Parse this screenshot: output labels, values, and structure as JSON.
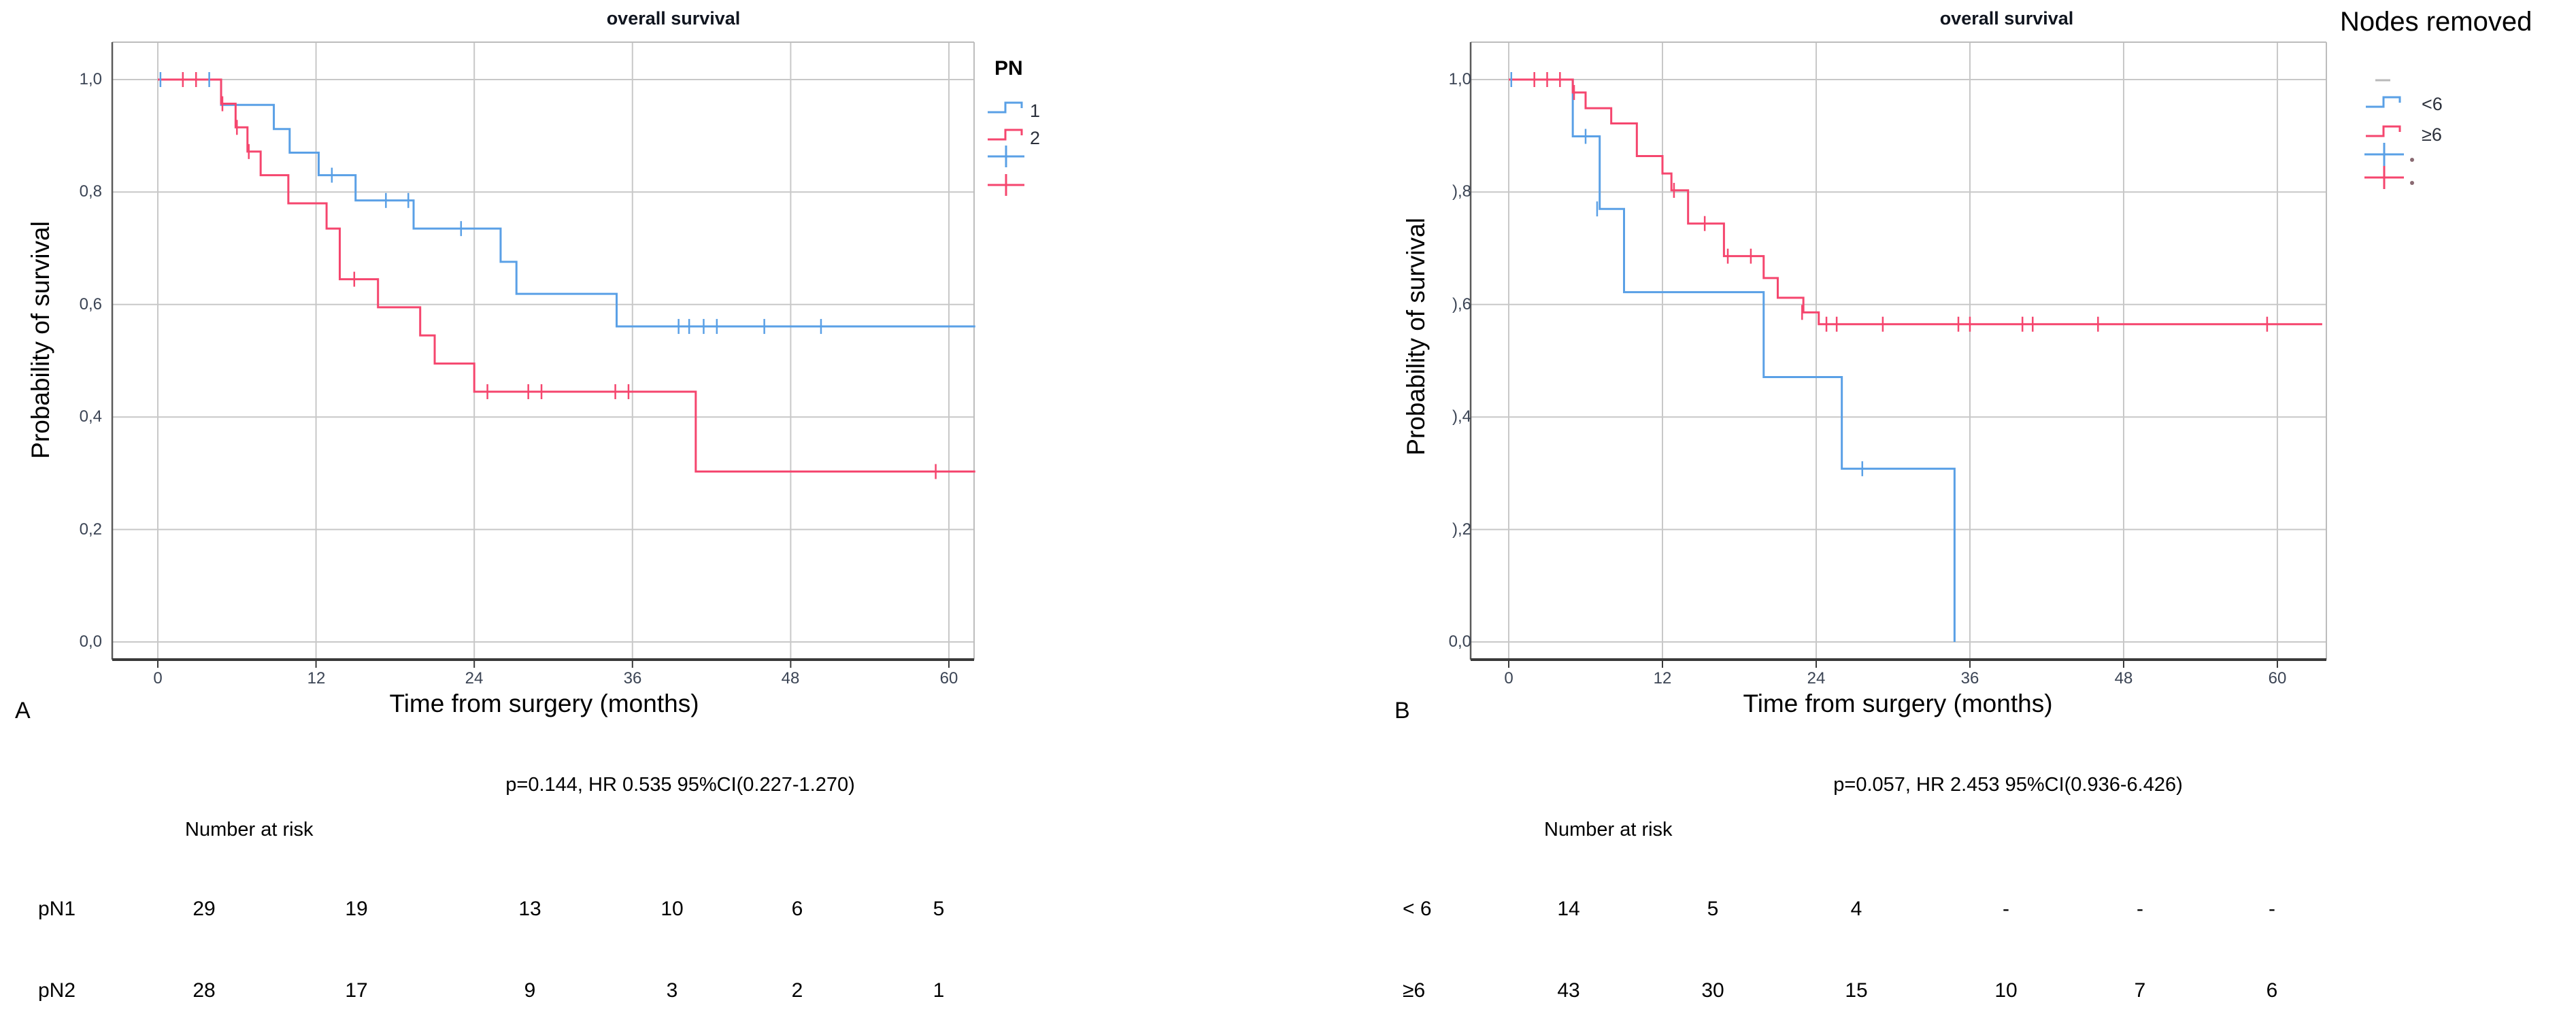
{
  "colors": {
    "blue": "#5AA0E6",
    "red": "#F5466E",
    "grid": "#C8C8C8",
    "frame_light": "#BDBDBD",
    "axis_left": "#5A5A5A",
    "axis_bottom": "#3A3A3A",
    "tick_text": "#3B4454",
    "panel_title": "#10151F",
    "legend_dash_gray": "#B9B9B9",
    "legend_dot": "#8A6A72"
  },
  "chart_data": [
    {
      "id": "A",
      "type": "km-step-line",
      "panel_label": "A",
      "title": "overall survival",
      "xlabel": "Time from surgery (months)",
      "ylabel": "Probability of survival",
      "x_axis": {
        "tick_labels": [
          "0",
          "12",
          "24",
          "36",
          "48",
          "60"
        ],
        "tick_values": [
          0,
          12,
          24,
          36,
          48,
          60
        ],
        "range": [
          -3.5,
          62
        ]
      },
      "y_axis": {
        "tick_labels": [
          "1,0",
          "0,8",
          "0,6",
          "0,4",
          "0,2",
          "0,0"
        ],
        "tick_values": [
          1.0,
          0.8,
          0.6,
          0.4,
          0.2,
          0.0
        ],
        "range": [
          0,
          1.05
        ],
        "grid": true
      },
      "legend": {
        "title": "PN",
        "items": [
          {
            "type": "step",
            "color": "blue",
            "label": "1"
          },
          {
            "type": "step",
            "color": "red",
            "label": "2"
          },
          {
            "type": "plus",
            "color": "blue",
            "label": ""
          },
          {
            "type": "plus",
            "color": "red",
            "label": ""
          }
        ]
      },
      "stats": "p=0.144, HR 0.535 95%CI(0.227-1.270)",
      "risk_table": {
        "header": "Number at risk",
        "rows": [
          {
            "label": "pN1",
            "values": [
              "29",
              "19",
              "13",
              "10",
              "6",
              "5"
            ]
          },
          {
            "label": "pN2",
            "values": [
              "28",
              "17",
              "9",
              "3",
              "2",
              "1"
            ]
          }
        ]
      },
      "series": [
        {
          "name": "1",
          "color": "blue",
          "end": 62,
          "steps": [
            [
              0,
              1.0
            ],
            [
              4.8,
              0.955
            ],
            [
              8.8,
              0.912
            ],
            [
              10.0,
              0.87
            ],
            [
              12.2,
              0.83
            ],
            [
              15.0,
              0.785
            ],
            [
              19.4,
              0.735
            ],
            [
              26.0,
              0.676
            ],
            [
              27.2,
              0.619
            ],
            [
              34.8,
              0.561
            ]
          ],
          "censors": [
            [
              0.2,
              1.0
            ],
            [
              3.9,
              1.0
            ],
            [
              13.2,
              0.83
            ],
            [
              17.3,
              0.785
            ],
            [
              19.0,
              0.785
            ],
            [
              23.0,
              0.735
            ],
            [
              39.5,
              0.561
            ],
            [
              40.3,
              0.561
            ],
            [
              41.4,
              0.561
            ],
            [
              42.4,
              0.561
            ],
            [
              46.0,
              0.561
            ],
            [
              50.3,
              0.561
            ]
          ]
        },
        {
          "name": "2",
          "color": "red",
          "end": 62,
          "steps": [
            [
              0,
              1.0
            ],
            [
              4.8,
              0.957
            ],
            [
              5.9,
              0.915
            ],
            [
              6.8,
              0.872
            ],
            [
              7.8,
              0.83
            ],
            [
              9.9,
              0.78
            ],
            [
              12.8,
              0.735
            ],
            [
              13.8,
              0.645
            ],
            [
              16.7,
              0.595
            ],
            [
              19.9,
              0.545
            ],
            [
              21.0,
              0.495
            ],
            [
              24.0,
              0.445
            ],
            [
              40.8,
              0.303
            ]
          ],
          "censors": [
            [
              1.9,
              1.0
            ],
            [
              2.9,
              1.0
            ],
            [
              4.9,
              0.957
            ],
            [
              6.0,
              0.915
            ],
            [
              6.9,
              0.872
            ],
            [
              14.9,
              0.645
            ],
            [
              25.0,
              0.445
            ],
            [
              28.1,
              0.445
            ],
            [
              29.1,
              0.445
            ],
            [
              34.7,
              0.445
            ],
            [
              35.7,
              0.445
            ],
            [
              59.0,
              0.303
            ]
          ]
        }
      ]
    },
    {
      "id": "B",
      "type": "km-step-line",
      "panel_label": "B",
      "title": "overall survival",
      "xlabel": "Time from surgery (months)",
      "ylabel": "Probability of survival",
      "x_axis": {
        "tick_labels": [
          "0",
          "12",
          "24",
          "36",
          "48",
          "60"
        ],
        "tick_values": [
          0,
          12,
          24,
          36,
          48,
          60
        ],
        "range": [
          -3,
          63.8
        ]
      },
      "y_axis": {
        "tick_labels": [
          "1,0",
          "),8",
          "),6",
          "),4",
          "),2",
          "0,0"
        ],
        "tick_values": [
          1.0,
          0.8,
          0.6,
          0.4,
          0.2,
          0.0
        ],
        "range": [
          0,
          1.05
        ],
        "grid": true
      },
      "legend": {
        "title": "Nodes removed",
        "items": [
          {
            "type": "dash",
            "color": "gray",
            "label": ""
          },
          {
            "type": "step",
            "color": "blue",
            "label": "<6"
          },
          {
            "type": "step",
            "color": "red",
            "label": "≥6"
          },
          {
            "type": "plus",
            "color": "blue",
            "label": "",
            "dot": true
          },
          {
            "type": "plus",
            "color": "red",
            "label": "",
            "dot": true
          }
        ]
      },
      "stats": "p=0.057, HR 2.453 95%CI(0.936-6.426)",
      "risk_table": {
        "header": "Number at risk",
        "rows": [
          {
            "label": "< 6",
            "values": [
              "14",
              "5",
              "4",
              "-",
              "-",
              "-"
            ]
          },
          {
            "label": "≥6",
            "values": [
              "43",
              "30",
              "15",
              "10",
              "7",
              "6"
            ]
          }
        ]
      },
      "series": [
        {
          "name": "<6",
          "color": "blue",
          "end": 34.8,
          "steps": [
            [
              0,
              1.0
            ],
            [
              5.0,
              0.899
            ],
            [
              7.1,
              0.77
            ],
            [
              9.0,
              0.622
            ],
            [
              19.9,
              0.471
            ],
            [
              26.0,
              0.308
            ],
            [
              34.8,
              0.0
            ]
          ],
          "censors": [
            [
              0.2,
              1.0
            ],
            [
              6.0,
              0.899
            ],
            [
              6.9,
              0.77
            ],
            [
              27.6,
              0.308
            ]
          ]
        },
        {
          "name": "≥6",
          "color": "red",
          "end": 63.5,
          "steps": [
            [
              0,
              1.0
            ],
            [
              5.0,
              0.977
            ],
            [
              6.0,
              0.949
            ],
            [
              8.0,
              0.922
            ],
            [
              10.0,
              0.864
            ],
            [
              12.0,
              0.833
            ],
            [
              12.7,
              0.803
            ],
            [
              14.0,
              0.744
            ],
            [
              16.8,
              0.686
            ],
            [
              19.9,
              0.647
            ],
            [
              21.0,
              0.612
            ],
            [
              23.0,
              0.586
            ],
            [
              24.2,
              0.565
            ]
          ],
          "censors": [
            [
              2.0,
              1.0
            ],
            [
              3.0,
              1.0
            ],
            [
              4.0,
              1.0
            ],
            [
              5.1,
              0.977
            ],
            [
              12.9,
              0.803
            ],
            [
              15.3,
              0.744
            ],
            [
              17.1,
              0.686
            ],
            [
              18.9,
              0.686
            ],
            [
              22.9,
              0.586
            ],
            [
              24.8,
              0.565
            ],
            [
              25.6,
              0.565
            ],
            [
              29.2,
              0.565
            ],
            [
              35.1,
              0.565
            ],
            [
              36.0,
              0.565
            ],
            [
              40.1,
              0.565
            ],
            [
              40.9,
              0.565
            ],
            [
              46.0,
              0.565
            ],
            [
              59.2,
              0.565
            ]
          ]
        }
      ]
    }
  ]
}
